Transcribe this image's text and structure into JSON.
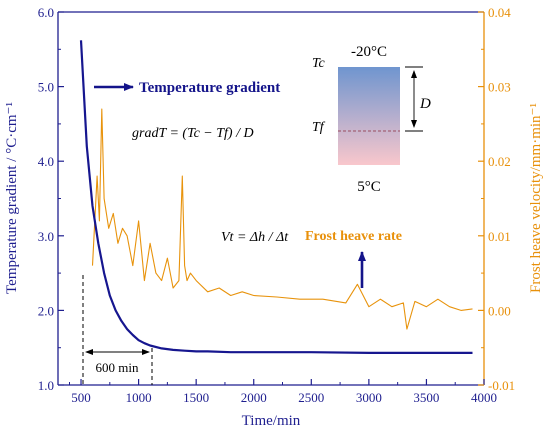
{
  "colors": {
    "left_axis": "#1f1f8f",
    "right_axis": "#e8900a",
    "gradient_curve": "#16168f",
    "frost_curve": "#e8930c",
    "arrow": "#14148a",
    "block_top": "#6f95cf",
    "block_bottom": "#f9c7cc",
    "dashed_line": "#8b2b3a"
  },
  "chart_data": {
    "type": "line",
    "xlabel": "Time/min",
    "ylabel": "Temperature gradient / °C·cm⁻¹",
    "y2label": "Frost heave velocity/mm·min⁻¹",
    "xlim": [
      300,
      4000
    ],
    "ylim": [
      1.0,
      6.0
    ],
    "y2lim": [
      -0.01,
      0.04
    ],
    "x_ticks": [
      "500",
      "1000",
      "1500",
      "2000",
      "2500",
      "3000",
      "3500",
      "4000"
    ],
    "y_ticks": [
      "1.0",
      "2.0",
      "3.0",
      "4.0",
      "5.0",
      "6.0"
    ],
    "y2_ticks": [
      "-0.01",
      "0.00",
      "0.01",
      "0.02",
      "0.03",
      "0.04"
    ],
    "series": [
      {
        "name": "Temperature gradient",
        "axis": "left",
        "x": [
          500,
          550,
          600,
          650,
          700,
          750,
          800,
          850,
          900,
          950,
          1000,
          1050,
          1100,
          1200,
          1300,
          1400,
          1500,
          1600,
          1800,
          2000,
          2500,
          3000,
          3500,
          3900
        ],
        "y": [
          5.62,
          4.2,
          3.4,
          2.9,
          2.5,
          2.2,
          2.0,
          1.86,
          1.75,
          1.67,
          1.6,
          1.56,
          1.53,
          1.49,
          1.47,
          1.46,
          1.45,
          1.45,
          1.44,
          1.44,
          1.44,
          1.43,
          1.43,
          1.43
        ]
      },
      {
        "name": "Frost heave rate",
        "axis": "right",
        "x": [
          600,
          640,
          660,
          680,
          700,
          740,
          780,
          820,
          860,
          900,
          950,
          1000,
          1050,
          1100,
          1150,
          1200,
          1250,
          1300,
          1350,
          1380,
          1400,
          1420,
          1450,
          1500,
          1600,
          1700,
          1800,
          1900,
          2000,
          2200,
          2400,
          2600,
          2800,
          2900,
          3000,
          3100,
          3200,
          3300,
          3330,
          3400,
          3500,
          3600,
          3700,
          3800,
          3900
        ],
        "y": [
          0.006,
          0.018,
          0.012,
          0.027,
          0.015,
          0.011,
          0.013,
          0.009,
          0.011,
          0.01,
          0.006,
          0.012,
          0.004,
          0.009,
          0.005,
          0.004,
          0.007,
          0.003,
          0.004,
          0.018,
          0.006,
          0.004,
          0.005,
          0.004,
          0.0025,
          0.003,
          0.002,
          0.0025,
          0.002,
          0.0018,
          0.0015,
          0.0015,
          0.001,
          0.0035,
          0.0005,
          0.0015,
          0.0005,
          0.001,
          -0.0025,
          0.0012,
          0.0005,
          0.0015,
          0.0005,
          0.0,
          0.0002
        ]
      }
    ],
    "annotations": {
      "gradient_label": "Temperature gradient",
      "frost_label": "Frost heave rate",
      "formula_grad": "gradT = (Tc − Tf) / D",
      "formula_vel": "Vt = Δh / Δt",
      "span_label": "600 min",
      "top_temp": "-20°C",
      "bottom_temp": "5°C",
      "tc_label": "Tc",
      "tf_label": "Tf",
      "d_label": "D"
    }
  }
}
